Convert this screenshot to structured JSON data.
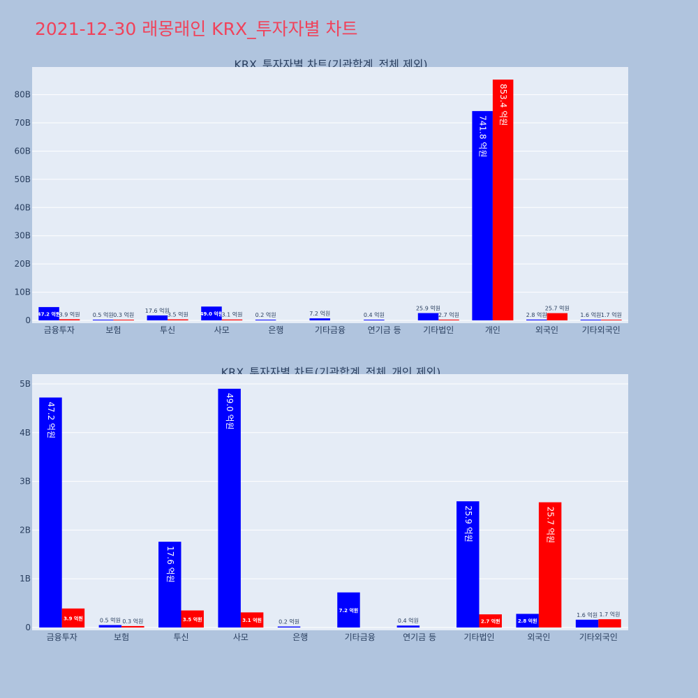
{
  "page": {
    "title": "2021-12-30 래몽래인 KRX_투자자별 차트"
  },
  "colors": {
    "buy": "#0000ff",
    "sell": "#ff0000",
    "plot_bg": "#e5ecf6",
    "paper_bg": "#b0c4de",
    "title": "#f0425a"
  },
  "chart_data": [
    {
      "type": "bar",
      "title": "KRX_투자자별 차트(기관합계_전체 제외)",
      "categories": [
        "금융투자",
        "보험",
        "투신",
        "사모",
        "은행",
        "기타금융",
        "연기금 등",
        "기타법인",
        "개인",
        "외국인",
        "기타외국인"
      ],
      "series": [
        {
          "color": "#0000ff",
          "values": [
            4.72,
            0.05,
            1.76,
            4.9,
            0.02,
            0.72,
            0.04,
            2.59,
            74.18,
            0.28,
            0.16
          ],
          "labels": [
            "47.2 억원",
            "0.5 억원",
            "17.6 억원",
            "49.0 억원",
            "0.2 억원",
            "7.2 억원",
            "0.4 억원",
            "25.9 억원",
            "741.8 억원",
            "2.8 억원",
            "1.6 억원"
          ]
        },
        {
          "color": "#ff0000",
          "values": [
            0.39,
            0.03,
            0.35,
            0.31,
            null,
            null,
            null,
            0.27,
            85.34,
            2.57,
            0.17
          ],
          "labels": [
            "3.9 억원",
            "0.3 억원",
            "3.5 억원",
            "3.1 억원",
            "",
            "",
            "",
            "2.7 억원",
            "853.4 억원",
            "25.7 억원",
            "1.7 억원"
          ]
        }
      ],
      "yticks": [
        "0",
        "10B",
        "20B",
        "30B",
        "40B",
        "50B",
        "60B",
        "70B",
        "80B"
      ],
      "ytick_values": [
        0,
        10,
        20,
        30,
        40,
        50,
        60,
        70,
        80
      ],
      "ylim": [
        0,
        89.8
      ],
      "value_unit": "B"
    },
    {
      "type": "bar",
      "title": "KRX_투자자별 차트(기관합계_전체_개인 제외)",
      "categories": [
        "금융투자",
        "보험",
        "투신",
        "사모",
        "은행",
        "기타금융",
        "연기금 등",
        "기타법인",
        "외국인",
        "기타외국인"
      ],
      "series": [
        {
          "color": "#0000ff",
          "values": [
            4.72,
            0.05,
            1.76,
            4.9,
            0.02,
            0.72,
            0.04,
            2.59,
            0.28,
            0.16
          ],
          "labels": [
            "47.2 억원",
            "0.5 억원",
            "17.6 억원",
            "49.0 억원",
            "0.2 억원",
            "7.2 억원",
            "0.4 억원",
            "25.9 억원",
            "2.8 억원",
            "1.6 억원"
          ]
        },
        {
          "color": "#ff0000",
          "values": [
            0.39,
            0.03,
            0.35,
            0.31,
            null,
            null,
            null,
            0.27,
            2.57,
            0.17
          ],
          "labels": [
            "3.9 억원",
            "0.3 억원",
            "3.5 억원",
            "3.1 억원",
            "",
            "",
            "",
            "2.7 억원",
            "25.7 억원",
            "1.7 억원"
          ]
        }
      ],
      "yticks": [
        "0",
        "1B",
        "2B",
        "3B",
        "4B",
        "5B"
      ],
      "ytick_values": [
        0,
        1,
        2,
        3,
        4,
        5
      ],
      "ylim": [
        0,
        5.2
      ],
      "value_unit": "B"
    }
  ]
}
